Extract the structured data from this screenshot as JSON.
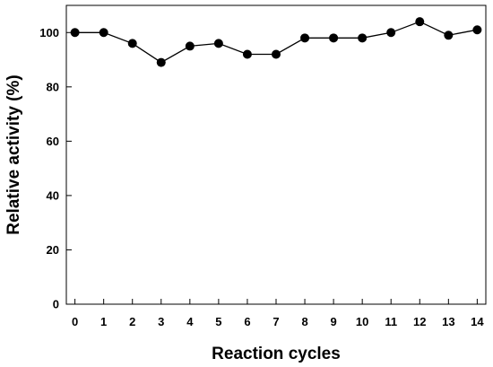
{
  "chart_data": {
    "type": "line",
    "xlabel": "Reaction cycles",
    "ylabel": "Relative activity (%)",
    "x": [
      0,
      1,
      2,
      3,
      4,
      5,
      6,
      7,
      8,
      9,
      10,
      11,
      12,
      13,
      14
    ],
    "series": [
      {
        "values": [
          100,
          100,
          96,
          89,
          95,
          96,
          92,
          92,
          98,
          98,
          98,
          100,
          104,
          99,
          101
        ]
      }
    ],
    "xlim": [
      -0.3,
      14.3
    ],
    "ylim": [
      0,
      110
    ],
    "xticks": [
      0,
      1,
      2,
      3,
      4,
      5,
      6,
      7,
      8,
      9,
      10,
      11,
      12,
      13,
      14
    ],
    "yticks": [
      0,
      20,
      40,
      60,
      80,
      100
    ],
    "grid": false,
    "legend": "none",
    "colors": {
      "line": "#000000",
      "marker": "#000000",
      "axis": "#000000"
    }
  }
}
